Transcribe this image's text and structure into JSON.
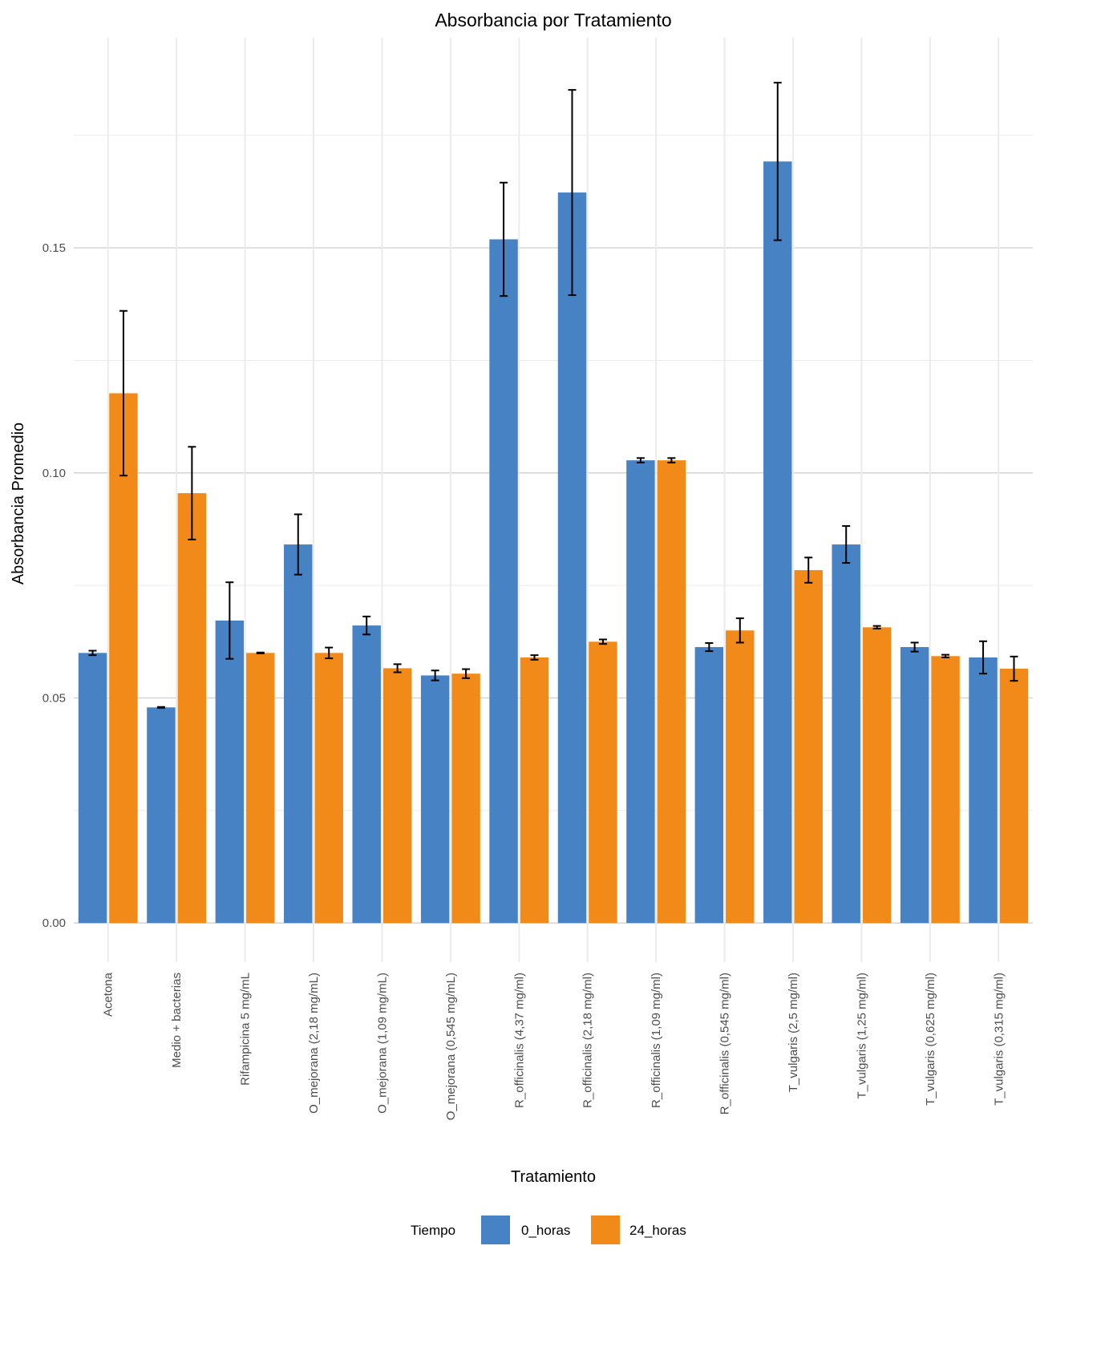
{
  "chart_data": {
    "type": "bar",
    "title": "Absorbancia por Tratamiento",
    "xlabel": "Tratamiento",
    "ylabel": "Absorbancia Promedio",
    "ylim": [
      -0.0087,
      0.1967
    ],
    "yticks": [
      0.0,
      0.05,
      0.1,
      0.15
    ],
    "ytick_labels": [
      "0.00",
      "0.05",
      "0.10",
      "0.15"
    ],
    "grid": true,
    "legend": {
      "title": "Tiempo",
      "placement": "bottom"
    },
    "categories": [
      "Acetona",
      "Medio + bacterias",
      "Rifampicina 5 mg/mL",
      "O_mejorana (2,18 mg/mL)",
      "O_mejorana (1,09 mg/mL)",
      "O_mejorana (0,545 mg/mL)",
      "R_officinalis (4,37 mg/ml)",
      "R_officinalis (2,18 mg/ml)",
      "R_officinalis (1,09 mg/ml)",
      "R_officinalis (0,545 mg/ml)",
      "T_vulgaris (2,5 mg/ml)",
      "T_vulgaris (1,25 mg/ml)",
      "T_vulgaris (0,625 mg/ml)",
      "T_vulgaris (0,315 mg/ml)"
    ],
    "series": [
      {
        "name": "0_horas",
        "color": "#4682C4",
        "values": [
          0.06,
          0.0479,
          0.0672,
          0.0841,
          0.0661,
          0.055,
          0.1519,
          0.1623,
          0.1028,
          0.0613,
          0.1692,
          0.0841,
          0.0613,
          0.059
        ],
        "errors": [
          0.0005,
          0.0001,
          0.0085,
          0.0067,
          0.002,
          0.0011,
          0.0126,
          0.0228,
          0.0005,
          0.0009,
          0.0175,
          0.0041,
          0.001,
          0.0036
        ]
      },
      {
        "name": "24_horas",
        "color": "#F28A1A",
        "values": [
          0.1177,
          0.0955,
          0.06,
          0.06,
          0.0566,
          0.0554,
          0.059,
          0.0625,
          0.1028,
          0.065,
          0.0784,
          0.0657,
          0.0593,
          0.0565
        ],
        "errors": [
          0.0183,
          0.0103,
          0.0001,
          0.0012,
          0.0009,
          0.001,
          0.0005,
          0.0005,
          0.0005,
          0.0027,
          0.0028,
          0.0003,
          0.0003,
          0.0027
        ]
      }
    ]
  }
}
